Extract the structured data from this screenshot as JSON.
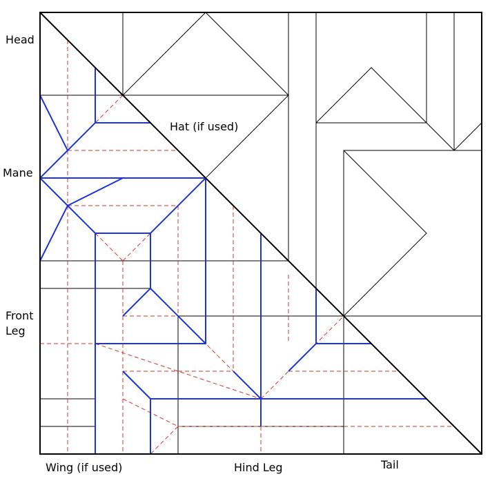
{
  "labels": {
    "head": "Head",
    "mane": "Mane",
    "front_leg_line1": "Front",
    "front_leg_line2": "Leg",
    "hat": "Hat (if used)",
    "wing": "Wing (if used)",
    "hind_leg": "Hind Leg",
    "tail": "Tail"
  },
  "colors": {
    "crease": "#000000",
    "mountain_fold": "#1a35e0",
    "valley_fold": "#d6342c"
  }
}
